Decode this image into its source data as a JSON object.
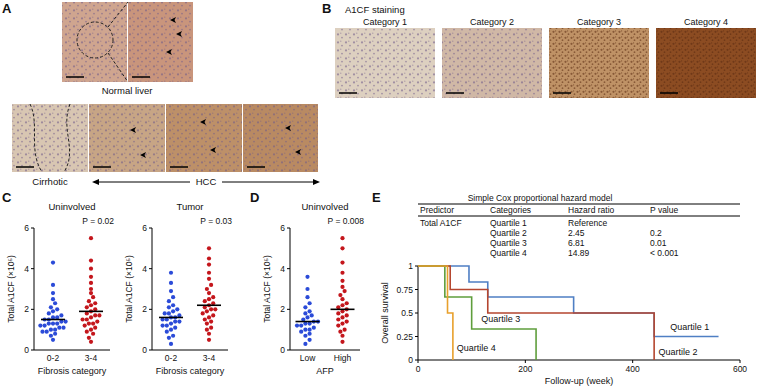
{
  "figure": {
    "panel_labels": [
      "A",
      "B",
      "C",
      "D",
      "E"
    ]
  },
  "panel_a": {
    "top_caption": "Normal liver",
    "bottom_left_caption": "Cirrhotic",
    "bottom_right_caption": "HCC"
  },
  "panel_b": {
    "title": "A1CF staining",
    "categories": [
      "Category 1",
      "Category 2",
      "Category 3",
      "Category 4"
    ]
  },
  "table": {
    "title": "Simple Cox proportional hazard model",
    "header": [
      "Predictor",
      "Categories",
      "Hazard ratio",
      "P value"
    ],
    "rows": [
      [
        "Total A1CF",
        "Quartile 1",
        "Reference",
        null
      ],
      [
        null,
        "Quartile 2",
        "2.45",
        "0.2"
      ],
      [
        null,
        "Quartile 3",
        "6.81",
        "0.01"
      ],
      [
        null,
        "Quartile 4",
        "14.89",
        "< 0.001"
      ]
    ]
  },
  "chart_data": [
    {
      "type": "strip",
      "title": "Uninvolved",
      "annotation": "P = 0.02",
      "categories": [
        "0-2",
        "3-4"
      ],
      "xlabel": "Fibrosis category",
      "ylabel": "Total A1CF (×10⁵)",
      "values": [
        [
          0.5,
          0.7,
          0.8,
          0.9,
          0.9,
          1.0,
          1.0,
          1.1,
          1.1,
          1.2,
          1.2,
          1.3,
          1.3,
          1.3,
          1.4,
          1.4,
          1.5,
          1.5,
          1.6,
          1.6,
          1.7,
          1.8,
          1.9,
          2.0,
          2.1,
          2.3,
          2.5,
          2.8,
          3.2,
          4.3
        ],
        [
          0.4,
          0.6,
          0.8,
          0.9,
          1.0,
          1.1,
          1.2,
          1.3,
          1.3,
          1.4,
          1.5,
          1.5,
          1.6,
          1.7,
          1.7,
          1.8,
          1.9,
          2.0,
          2.1,
          2.2,
          2.3,
          2.4,
          2.6,
          2.8,
          3.0,
          3.3,
          3.6,
          4.0,
          4.4,
          5.5
        ]
      ],
      "means": [
        1.5,
        1.9
      ],
      "colors": [
        "#2b4bd8",
        "#c4161c"
      ],
      "ylim": [
        0,
        6
      ],
      "yticks": [
        0,
        2,
        4,
        6
      ]
    },
    {
      "type": "strip",
      "title": "Tumor",
      "annotation": "P = 0.03",
      "categories": [
        "0-2",
        "3-4"
      ],
      "xlabel": "Fibrosis category",
      "ylabel": "Total A1CF (×10⁵)",
      "values": [
        [
          0.3,
          0.6,
          0.7,
          0.9,
          1.0,
          1.1,
          1.2,
          1.2,
          1.3,
          1.4,
          1.4,
          1.5,
          1.5,
          1.6,
          1.6,
          1.7,
          1.8,
          1.8,
          1.9,
          2.0,
          2.1,
          2.2,
          2.4,
          2.6,
          2.9,
          3.3,
          3.8
        ],
        [
          0.5,
          0.8,
          1.0,
          1.1,
          1.3,
          1.4,
          1.5,
          1.6,
          1.7,
          1.8,
          1.9,
          2.0,
          2.0,
          2.1,
          2.2,
          2.3,
          2.4,
          2.5,
          2.6,
          2.8,
          3.0,
          3.2,
          3.5,
          3.8,
          4.2,
          4.5,
          5.0
        ]
      ],
      "means": [
        1.6,
        2.2
      ],
      "colors": [
        "#2b4bd8",
        "#c4161c"
      ],
      "ylim": [
        0,
        6
      ],
      "yticks": [
        0,
        2,
        4,
        6
      ]
    },
    {
      "type": "strip",
      "title": "Uninvolved",
      "annotation": "P = 0.008",
      "categories": [
        "Low",
        "High"
      ],
      "xlabel": "AFP",
      "ylabel": "Total A1CF (×10⁵)",
      "values": [
        [
          0.3,
          0.5,
          0.7,
          0.8,
          0.9,
          1.0,
          1.0,
          1.1,
          1.2,
          1.2,
          1.3,
          1.3,
          1.4,
          1.4,
          1.5,
          1.6,
          1.7,
          1.8,
          1.9,
          2.1,
          2.3,
          2.6,
          3.0,
          3.6
        ],
        [
          0.4,
          0.7,
          0.9,
          1.0,
          1.2,
          1.3,
          1.4,
          1.5,
          1.6,
          1.7,
          1.8,
          1.9,
          2.0,
          2.1,
          2.2,
          2.3,
          2.5,
          2.7,
          2.9,
          3.1,
          3.4,
          3.8,
          4.3,
          5.0,
          5.5
        ]
      ],
      "means": [
        1.4,
        2.0
      ],
      "colors": [
        "#2b4bd8",
        "#c4161c"
      ],
      "ylim": [
        0,
        6
      ],
      "yticks": [
        0,
        2,
        4,
        6
      ]
    },
    {
      "type": "line",
      "line_style": "step",
      "xlabel": "Follow-up (week)",
      "ylabel": "Overall survival",
      "series": [
        {
          "name": "Quartile 1",
          "color": "#4f7fc4",
          "x": [
            0,
            95,
            130,
            290,
            440,
            560
          ],
          "values": [
            1,
            0.83,
            0.67,
            0.5,
            0.25,
            0.25
          ]
        },
        {
          "name": "Quartile 2",
          "color": "#b5462f",
          "x": [
            0,
            60,
            130,
            440
          ],
          "values": [
            1,
            0.75,
            0.5,
            0
          ]
        },
        {
          "name": "Quartile 3",
          "color": "#5f9e3c",
          "x": [
            0,
            50,
            100,
            220
          ],
          "values": [
            1,
            0.67,
            0.33,
            0
          ]
        },
        {
          "name": "Quartile 4",
          "color": "#e8a02c",
          "x": [
            0,
            55,
            65
          ],
          "values": [
            1,
            0.5,
            0
          ]
        }
      ],
      "xlim": [
        0,
        600
      ],
      "xticks": [
        0,
        200,
        400,
        600
      ],
      "ylim": [
        0,
        1
      ],
      "yticks": [
        0,
        0.25,
        0.5,
        0.75,
        1
      ]
    }
  ]
}
